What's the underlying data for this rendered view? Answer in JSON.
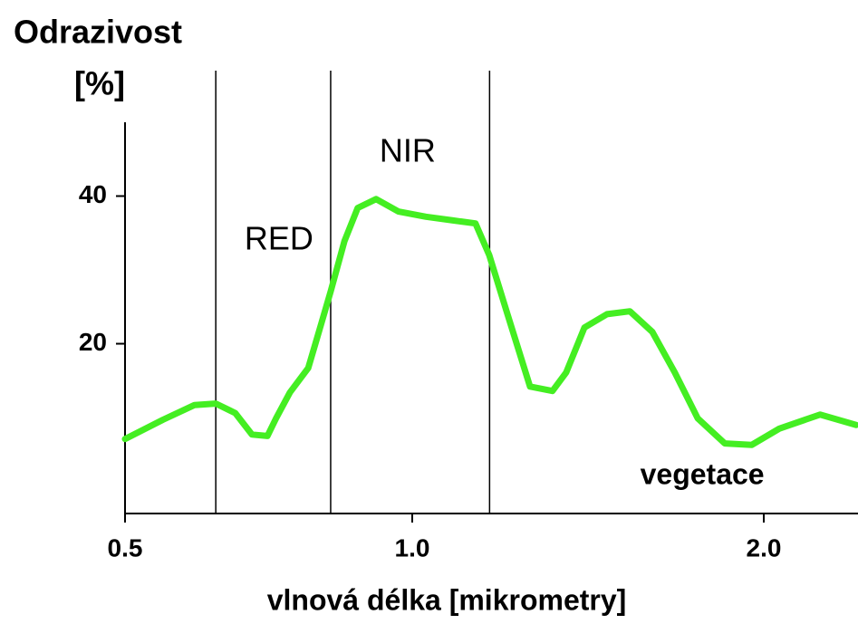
{
  "chart_data": {
    "type": "line",
    "ylabel": [
      "Odrazivost",
      "[%]"
    ],
    "xlabel": "vlnová délka [mikrometry]",
    "x": [
      0.5,
      0.566,
      0.621,
      0.658,
      0.692,
      0.721,
      0.748,
      0.763,
      0.787,
      0.819,
      0.842,
      0.858,
      0.882,
      0.905,
      0.937,
      0.976,
      1.039,
      1.116,
      1.18,
      1.219,
      1.271,
      1.335,
      1.399,
      1.438,
      1.49,
      1.554,
      1.619,
      1.683,
      1.747,
      1.812,
      1.889,
      1.966,
      2.044,
      2.16,
      2.263
    ],
    "series": [
      {
        "name": "vegetace",
        "color": "#44ee22",
        "values": [
          7.1,
          9.7,
          11.7,
          11.9,
          10.6,
          7.7,
          7.5,
          9.9,
          13.4,
          16.7,
          22.8,
          27.1,
          33.9,
          38.4,
          39.6,
          37.9,
          37.2,
          36.7,
          36.3,
          32.0,
          24.0,
          14.2,
          13.6,
          16.1,
          22.2,
          24.0,
          24.4,
          21.6,
          16.1,
          9.9,
          6.5,
          6.3,
          8.5,
          10.4,
          9.0
        ]
      }
    ],
    "xlim": [
      0.5,
      2.27
    ],
    "xticks": [
      0.5,
      {
        "value": 1,
        "label": "1.0"
      },
      {
        "value": 2,
        "label": "2.0"
      }
    ],
    "ylim": [
      -3,
      50
    ],
    "yticks": [
      20,
      40
    ],
    "band_lines": [
      0.658,
      0.858,
      1.22
    ],
    "annotations": [
      {
        "text": "RED",
        "x": 0.768,
        "y": 33.9
      },
      {
        "text": "NIR",
        "x": 0.992,
        "y": 45.8
      }
    ],
    "series_label": {
      "x": 1.825,
      "y": 2.0
    }
  }
}
